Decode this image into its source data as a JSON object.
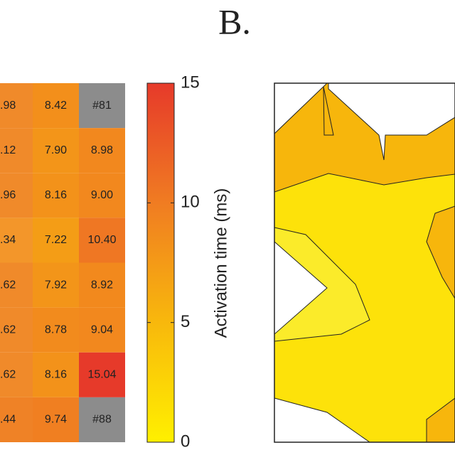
{
  "title": "B.",
  "chart_data": {
    "type": "heatmap",
    "colormap": [
      "#fff000",
      "#f8b80c",
      "#f07c22",
      "#e63a2a"
    ],
    "missing_color": "#8c8c8c",
    "columns": [
      {
        "value_labels": [
          ".98",
          ".12",
          ".96",
          ".34",
          ".62",
          ".62",
          ".62",
          ".44"
        ],
        "colors": [
          "#f08a2a",
          "#f08a2a",
          "#f08a2a",
          "#f3962a",
          "#f08a2a",
          "#f08a2a",
          "#f08a2a",
          "#ef8226"
        ]
      },
      {
        "values": [
          8.42,
          7.9,
          8.16,
          7.22,
          7.92,
          8.78,
          8.16,
          9.74
        ],
        "value_labels": [
          "8.42",
          "7.90",
          "8.16",
          "7.22",
          "7.92",
          "8.78",
          "8.16",
          "9.74"
        ]
      },
      {
        "values": [
          null,
          8.98,
          9.0,
          10.4,
          8.92,
          9.04,
          15.04,
          null
        ],
        "value_labels": [
          "#81",
          "8.98",
          "9.00",
          "10.40",
          "8.92",
          "9.04",
          "15.04",
          "#88"
        ]
      }
    ],
    "colorbar": {
      "label": "Activation time (ms)",
      "lim": [
        0,
        15
      ],
      "ticks": [
        0,
        5,
        10,
        15
      ]
    }
  }
}
